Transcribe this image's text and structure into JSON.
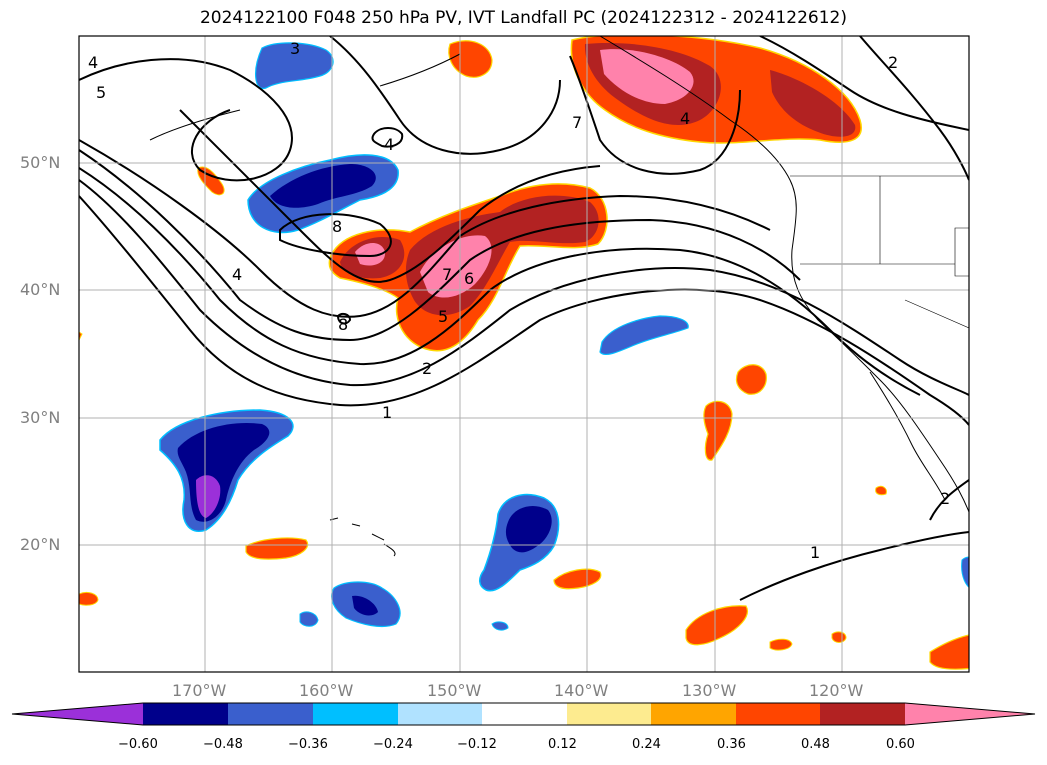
{
  "title": "2024122100 F048 250 hPa PV, IVT Landfall PC (2024122312 - 2024122612)",
  "lat_labels": [
    "50°N",
    "40°N",
    "30°N",
    "20°N"
  ],
  "lon_labels": [
    "170°W",
    "160°W",
    "150°W",
    "140°W",
    "130°W",
    "120°W"
  ],
  "contour_labels": [
    "3",
    "4",
    "5",
    "4",
    "8",
    "4",
    "8",
    "7",
    "6",
    "5",
    "2",
    "1",
    "7",
    "4",
    "2",
    "1",
    "2"
  ],
  "colorbar": {
    "tick_labels": [
      "−0.60",
      "−0.48",
      "−0.36",
      "−0.24",
      "−0.12",
      "0.12",
      "0.24",
      "0.36",
      "0.48",
      "0.60"
    ],
    "colors": [
      "#9b30d9",
      "#00008b",
      "#3a5fcd",
      "#00bfff",
      "#b0e2ff",
      "#ffffff",
      "#fdeb8f",
      "#ffa500",
      "#ff4500",
      "#b22222",
      "#ff82ab"
    ]
  },
  "chart_data": {
    "type": "heatmap",
    "title": "2024122100 F048 250 hPa PV, IVT Landfall PC (2024122312 - 2024122612)",
    "x_axis": {
      "label": "",
      "ticks": [
        "170°W",
        "160°W",
        "150°W",
        "140°W",
        "130°W",
        "120°W"
      ],
      "range_deg": [
        -180,
        -110
      ]
    },
    "y_axis": {
      "label": "",
      "ticks": [
        "20°N",
        "30°N",
        "40°N",
        "50°N"
      ],
      "range_deg": [
        10,
        60
      ]
    },
    "color_scale_levels": [
      -0.6,
      -0.48,
      -0.36,
      -0.24,
      -0.12,
      0.12,
      0.24,
      0.36,
      0.48,
      0.6
    ],
    "contour_levels_shown": [
      1,
      2,
      3,
      4,
      5,
      6,
      7,
      8
    ],
    "grid": true,
    "colorbar": "bottom"
  }
}
